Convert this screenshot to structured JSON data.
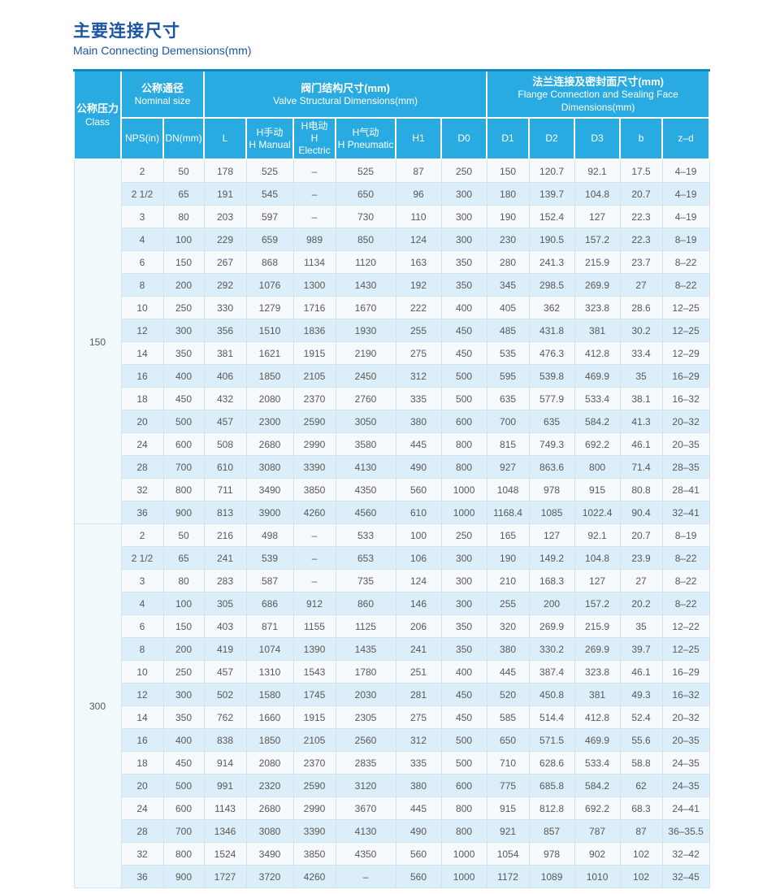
{
  "page": {
    "title_zh": "主要连接尺寸",
    "title_en": "Main Connecting Demensions(mm)"
  },
  "colors": {
    "header_bg": "#29abe2",
    "title_blue": "#1c55a5",
    "row_alt": "#dceef9",
    "row_base": "#f6fafd",
    "cell_border": "#cfe4f1",
    "text": "#58585a"
  },
  "table": {
    "header": {
      "class_zh": "公称压力",
      "class_en": "Class",
      "nominal_zh": "公称通径",
      "nominal_en": "Nominal size",
      "valve_zh": "阀门结构尺寸(mm)",
      "valve_en": "Valve Structural Dimensions(mm)",
      "flange_zh": "法兰连接及密封面尺寸(mm)",
      "flange_en_1": "Flange Connection and Sealing Face",
      "flange_en_2": "Dimensions(mm)"
    },
    "sub_headers": [
      [
        "NPS(in)"
      ],
      [
        "DN(mm)"
      ],
      [
        "L"
      ],
      [
        "H手动",
        "H Manual"
      ],
      [
        "H电动",
        "H Electric"
      ],
      [
        "H气动",
        "H Pneumatic"
      ],
      [
        "H1"
      ],
      [
        "D0"
      ],
      [
        "D1"
      ],
      [
        "D2"
      ],
      [
        "D3"
      ],
      [
        "b"
      ],
      [
        "z–d"
      ]
    ],
    "groups": [
      {
        "class": "150",
        "rows": [
          [
            "2",
            "50",
            "178",
            "525",
            "–",
            "525",
            "87",
            "250",
            "150",
            "120.7",
            "92.1",
            "17.5",
            "4–19"
          ],
          [
            "2 1/2",
            "65",
            "191",
            "545",
            "–",
            "650",
            "96",
            "300",
            "180",
            "139.7",
            "104.8",
            "20.7",
            "4–19"
          ],
          [
            "3",
            "80",
            "203",
            "597",
            "–",
            "730",
            "110",
            "300",
            "190",
            "152.4",
            "127",
            "22.3",
            "4–19"
          ],
          [
            "4",
            "100",
            "229",
            "659",
            "989",
            "850",
            "124",
            "300",
            "230",
            "190.5",
            "157.2",
            "22.3",
            "8–19"
          ],
          [
            "6",
            "150",
            "267",
            "868",
            "1134",
            "1120",
            "163",
            "350",
            "280",
            "241.3",
            "215.9",
            "23.7",
            "8–22"
          ],
          [
            "8",
            "200",
            "292",
            "1076",
            "1300",
            "1430",
            "192",
            "350",
            "345",
            "298.5",
            "269.9",
            "27",
            "8–22"
          ],
          [
            "10",
            "250",
            "330",
            "1279",
            "1716",
            "1670",
            "222",
            "400",
            "405",
            "362",
            "323.8",
            "28.6",
            "12–25"
          ],
          [
            "12",
            "300",
            "356",
            "1510",
            "1836",
            "1930",
            "255",
            "450",
            "485",
            "431.8",
            "381",
            "30.2",
            "12–25"
          ],
          [
            "14",
            "350",
            "381",
            "1621",
            "1915",
            "2190",
            "275",
            "450",
            "535",
            "476.3",
            "412.8",
            "33.4",
            "12–29"
          ],
          [
            "16",
            "400",
            "406",
            "1850",
            "2105",
            "2450",
            "312",
            "500",
            "595",
            "539.8",
            "469.9",
            "35",
            "16–29"
          ],
          [
            "18",
            "450",
            "432",
            "2080",
            "2370",
            "2760",
            "335",
            "500",
            "635",
            "577.9",
            "533.4",
            "38.1",
            "16–32"
          ],
          [
            "20",
            "500",
            "457",
            "2300",
            "2590",
            "3050",
            "380",
            "600",
            "700",
            "635",
            "584.2",
            "41.3",
            "20–32"
          ],
          [
            "24",
            "600",
            "508",
            "2680",
            "2990",
            "3580",
            "445",
            "800",
            "815",
            "749.3",
            "692.2",
            "46.1",
            "20–35"
          ],
          [
            "28",
            "700",
            "610",
            "3080",
            "3390",
            "4130",
            "490",
            "800",
            "927",
            "863.6",
            "800",
            "71.4",
            "28–35"
          ],
          [
            "32",
            "800",
            "711",
            "3490",
            "3850",
            "4350",
            "560",
            "1000",
            "1048",
            "978",
            "915",
            "80.8",
            "28–41"
          ],
          [
            "36",
            "900",
            "813",
            "3900",
            "4260",
            "4560",
            "610",
            "1000",
            "1168.4",
            "1085",
            "1022.4",
            "90.4",
            "32–41"
          ]
        ]
      },
      {
        "class": "300",
        "rows": [
          [
            "2",
            "50",
            "216",
            "498",
            "–",
            "533",
            "100",
            "250",
            "165",
            "127",
            "92.1",
            "20.7",
            "8–19"
          ],
          [
            "2 1/2",
            "65",
            "241",
            "539",
            "–",
            "653",
            "106",
            "300",
            "190",
            "149.2",
            "104.8",
            "23.9",
            "8–22"
          ],
          [
            "3",
            "80",
            "283",
            "587",
            "–",
            "735",
            "124",
            "300",
            "210",
            "168.3",
            "127",
            "27",
            "8–22"
          ],
          [
            "4",
            "100",
            "305",
            "686",
            "912",
            "860",
            "146",
            "300",
            "255",
            "200",
            "157.2",
            "20.2",
            "8–22"
          ],
          [
            "6",
            "150",
            "403",
            "871",
            "1155",
            "1125",
            "206",
            "350",
            "320",
            "269.9",
            "215.9",
            "35",
            "12–22"
          ],
          [
            "8",
            "200",
            "419",
            "1074",
            "1390",
            "1435",
            "241",
            "350",
            "380",
            "330.2",
            "269.9",
            "39.7",
            "12–25"
          ],
          [
            "10",
            "250",
            "457",
            "1310",
            "1543",
            "1780",
            "251",
            "400",
            "445",
            "387.4",
            "323.8",
            "46.1",
            "16–29"
          ],
          [
            "12",
            "300",
            "502",
            "1580",
            "1745",
            "2030",
            "281",
            "450",
            "520",
            "450.8",
            "381",
            "49.3",
            "16–32"
          ],
          [
            "14",
            "350",
            "762",
            "1660",
            "1915",
            "2305",
            "275",
            "450",
            "585",
            "514.4",
            "412.8",
            "52.4",
            "20–32"
          ],
          [
            "16",
            "400",
            "838",
            "1850",
            "2105",
            "2560",
            "312",
            "500",
            "650",
            "571.5",
            "469.9",
            "55.6",
            "20–35"
          ],
          [
            "18",
            "450",
            "914",
            "2080",
            "2370",
            "2835",
            "335",
            "500",
            "710",
            "628.6",
            "533.4",
            "58.8",
            "24–35"
          ],
          [
            "20",
            "500",
            "991",
            "2320",
            "2590",
            "3120",
            "380",
            "600",
            "775",
            "685.8",
            "584.2",
            "62",
            "24–35"
          ],
          [
            "24",
            "600",
            "1143",
            "2680",
            "2990",
            "3670",
            "445",
            "800",
            "915",
            "812.8",
            "692.2",
            "68.3",
            "24–41"
          ],
          [
            "28",
            "700",
            "1346",
            "3080",
            "3390",
            "4130",
            "490",
            "800",
            "921",
            "857",
            "787",
            "87",
            "36–35.5"
          ],
          [
            "32",
            "800",
            "1524",
            "3490",
            "3850",
            "4350",
            "560",
            "1000",
            "1054",
            "978",
            "902",
            "102",
            "32–42"
          ],
          [
            "36",
            "900",
            "1727",
            "3720",
            "4260",
            "–",
            "560",
            "1000",
            "1172",
            "1089",
            "1010",
            "102",
            "32–45"
          ]
        ]
      }
    ]
  }
}
